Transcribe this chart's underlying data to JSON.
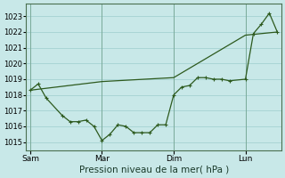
{
  "bg_color": "#c8e8e8",
  "plot_bg_color": "#c8e8e8",
  "grid_color": "#9ecece",
  "line_color": "#2d5a1e",
  "ylim": [
    1014.5,
    1023.8
  ],
  "yticks": [
    1015,
    1016,
    1017,
    1018,
    1019,
    1020,
    1021,
    1022,
    1023
  ],
  "xlabel": "Pression niveau de la mer( hPa )",
  "xtick_labels": [
    "Sam",
    "Mar",
    "Dim",
    "Lun"
  ],
  "xtick_positions": [
    0,
    36,
    72,
    108
  ],
  "xlim": [
    -2,
    126
  ],
  "vlines": [
    0,
    36,
    72,
    108
  ],
  "jagged_x": [
    0,
    4,
    8,
    16,
    20,
    24,
    28,
    32,
    36,
    40,
    44,
    48,
    52,
    56,
    60,
    64,
    68,
    72,
    76,
    80,
    84,
    88,
    92,
    96,
    100,
    108,
    112,
    116,
    120,
    124
  ],
  "jagged_y": [
    1018.3,
    1018.7,
    1017.8,
    1016.7,
    1016.3,
    1016.3,
    1016.4,
    1016.0,
    1015.1,
    1015.5,
    1016.1,
    1016.0,
    1015.6,
    1015.6,
    1015.6,
    1016.1,
    1016.1,
    1018.0,
    1018.5,
    1018.6,
    1019.1,
    1019.1,
    1019.0,
    1019.0,
    1018.9,
    1019.0,
    1021.9,
    1022.5,
    1023.2,
    1022.0
  ],
  "smooth_x": [
    0,
    36,
    72,
    108,
    124
  ],
  "smooth_y": [
    1018.3,
    1018.85,
    1019.1,
    1021.8,
    1022.0
  ],
  "tick_fontsize": 6,
  "xlabel_fontsize": 7.5,
  "spine_color": "#4a7050"
}
